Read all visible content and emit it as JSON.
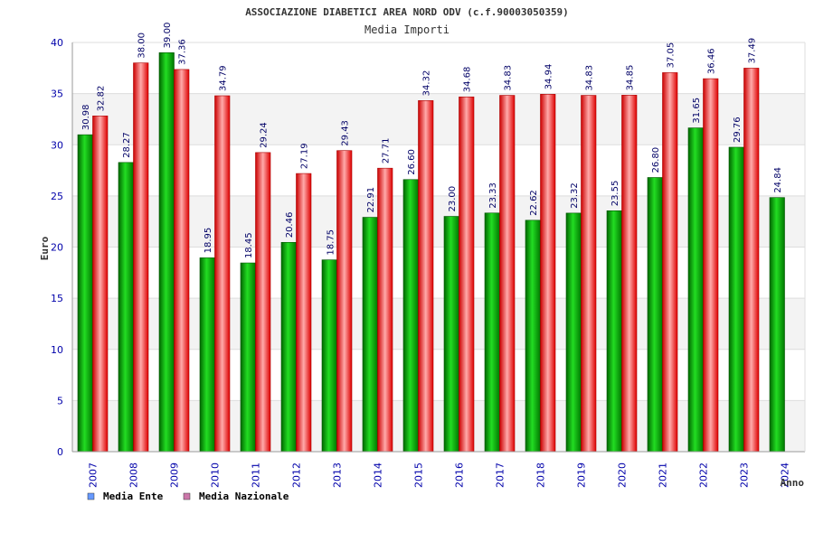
{
  "chart_data": {
    "type": "bar",
    "title": "ASSOCIAZIONE DIABETICI AREA NORD ODV (c.f.90003050359)",
    "subtitle": "Media Importi",
    "xlabel": "Anno",
    "ylabel": "Euro",
    "ylim": [
      0,
      40
    ],
    "yticks": [
      "0",
      "5",
      "10",
      "15",
      "20",
      "25",
      "30",
      "35",
      "40"
    ],
    "categories": [
      "2007",
      "2008",
      "2009",
      "2010",
      "2011",
      "2012",
      "2013",
      "2014",
      "2015",
      "2016",
      "2017",
      "2018",
      "2019",
      "2020",
      "2021",
      "2022",
      "2023",
      "2024"
    ],
    "series": [
      {
        "name": "Media Ente",
        "color": "#00a000",
        "values": [
          30.98,
          28.27,
          39.0,
          18.95,
          18.45,
          20.46,
          18.75,
          22.91,
          26.6,
          23.0,
          23.33,
          22.62,
          23.32,
          23.55,
          26.8,
          31.65,
          29.76,
          24.84
        ],
        "labels": [
          "30.98",
          "28.27",
          "39.00",
          "18.95",
          "18.45",
          "20.46",
          "18.75",
          "22.91",
          "26.60",
          "23.00",
          "23.33",
          "22.62",
          "23.32",
          "23.55",
          "26.80",
          "31.65",
          "29.76",
          "24.84"
        ]
      },
      {
        "name": "Media Nazionale",
        "color": "#e8202a",
        "values": [
          32.82,
          38.0,
          37.36,
          34.79,
          29.24,
          27.19,
          29.43,
          27.71,
          34.32,
          34.68,
          34.83,
          34.94,
          34.83,
          34.85,
          37.05,
          36.46,
          37.49,
          null
        ],
        "labels": [
          "32.82",
          "38.00",
          "37.36",
          "34.79",
          "29.24",
          "27.19",
          "29.43",
          "27.71",
          "34.32",
          "34.68",
          "34.83",
          "34.94",
          "34.83",
          "34.85",
          "37.05",
          "36.46",
          "37.49",
          null
        ]
      }
    ],
    "legend": [
      {
        "label": "Media Ente",
        "swatch": "#6699ff"
      },
      {
        "label": "Media Nazionale",
        "swatch": "#cc77aa"
      }
    ],
    "grid": true
  }
}
